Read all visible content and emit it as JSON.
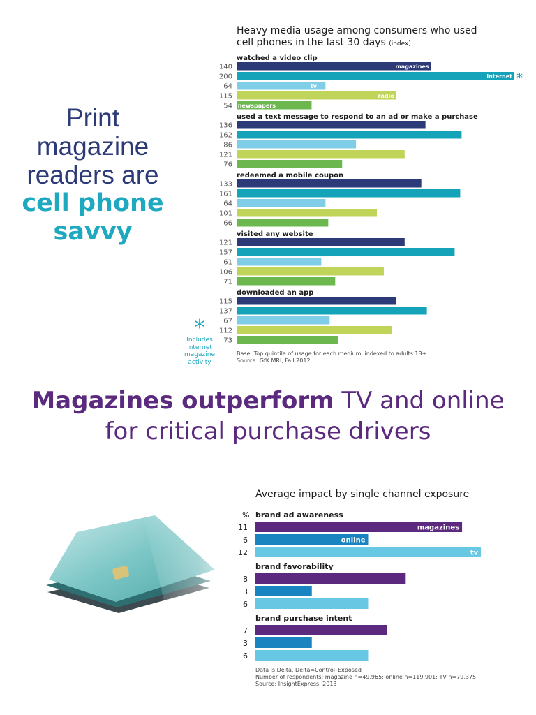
{
  "headline": {
    "line1": "Print",
    "line2": "magazine",
    "line3": "readers are",
    "line4": "cell phone",
    "line5": "savvy"
  },
  "note": {
    "star": "*",
    "text1": "Includes",
    "text2": "internet",
    "text3": "magazine",
    "text4": "activity"
  },
  "section2": {
    "title_bold": "Magazines outperform",
    "title_rest": " TV and online",
    "title_line2": "for critical purchase drivers"
  },
  "colors": {
    "magazines": "#2d3a78",
    "internet": "#14a3b8",
    "tv": "#7fcde6",
    "radio": "#c1d45a",
    "newspapers": "#6cb84f",
    "c2_magazines": "#5b2a7e",
    "c2_online": "#1a84c0",
    "c2_tv": "#68c8e4"
  },
  "chart_data": [
    {
      "type": "bar",
      "title": "Heavy media usage among consumers who used",
      "title_line2": "cell phones in the last 30 days",
      "title_note": "(index)",
      "series_names": [
        "magazines",
        "internet",
        "tv",
        "radio",
        "newspapers"
      ],
      "internet_marker": "*",
      "xlim": [
        0,
        200
      ],
      "groups": [
        {
          "label": "watched a video clip",
          "values": [
            140,
            200,
            64,
            115,
            54
          ]
        },
        {
          "label": "used a text message to respond to an ad or make a purchase",
          "values": [
            136,
            162,
            86,
            121,
            76
          ]
        },
        {
          "label": "redeemed a mobile coupon",
          "values": [
            133,
            161,
            64,
            101,
            66
          ]
        },
        {
          "label": "visited any website",
          "values": [
            121,
            157,
            61,
            106,
            71
          ]
        },
        {
          "label": "downloaded an app",
          "values": [
            115,
            137,
            67,
            112,
            73
          ]
        }
      ],
      "source_line1": "Base: Top quintile of usage for each medium, indexed to adults 18+",
      "source_line2": "Source: GfK MRI, Fall 2012"
    },
    {
      "type": "bar",
      "title": "Average impact by single channel exposure",
      "unit_label": "%",
      "series_names": [
        "magazines",
        "online",
        "tv"
      ],
      "xlim": [
        0,
        12
      ],
      "groups": [
        {
          "label": "brand ad awareness",
          "values": [
            11,
            6,
            12
          ]
        },
        {
          "label": "brand favorability",
          "values": [
            8,
            3,
            6
          ]
        },
        {
          "label": "brand purchase intent",
          "values": [
            7,
            3,
            6
          ]
        }
      ],
      "source_line1": "Data is Delta. Delta=Control–Exposed",
      "source_line2": "Number of respondents: magazine n=49,965; online n=119,901; TV n=79,375",
      "source_line3": "Source: InsightExpress, 2013"
    }
  ]
}
